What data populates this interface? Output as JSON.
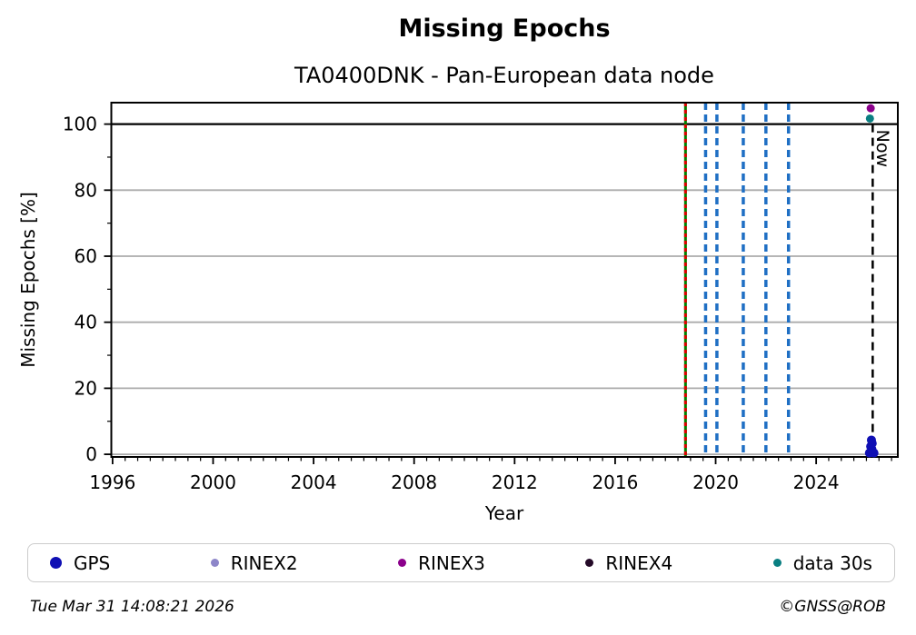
{
  "title": "Missing Epochs",
  "subtitle": "TA0400DNK - Pan-European data node",
  "footer": {
    "timestamp": "Tue Mar 31 14:08:21 2026",
    "credit": "©GNSS@ROB"
  },
  "chart_data": {
    "type": "scatter",
    "title": "Missing Epochs",
    "subtitle": "TA0400DNK - Pan-European data node",
    "xlabel": "Year",
    "ylabel": "Missing Epochs [%]",
    "xlim": [
      1995.95,
      2027.25
    ],
    "ylim": [
      -0.8,
      106.5
    ],
    "xticks": [
      1996,
      2000,
      2004,
      2008,
      2012,
      2016,
      2020,
      2024
    ],
    "yticks": [
      0,
      20,
      40,
      60,
      80,
      100
    ],
    "x_minor_step": 0.5,
    "y_minor_step": 10,
    "grid": true,
    "grid_color": "#ababab",
    "hline_y": 100,
    "legend_position": "bottom",
    "series": [
      {
        "name": "GPS",
        "color": "#0f0fb4",
        "marker_r": 5,
        "legend_marker_px": 13,
        "points": [
          [
            2026.12,
            0.4
          ],
          [
            2026.3,
            0.4
          ],
          [
            2026.2,
            0.6
          ],
          [
            2026.22,
            1.5
          ],
          [
            2026.17,
            2.4
          ],
          [
            2026.23,
            3.3
          ],
          [
            2026.2,
            4.3
          ]
        ]
      },
      {
        "name": "RINEX2",
        "color": "#8d86c9",
        "marker_r": 4.5,
        "legend_marker_px": 9,
        "points": []
      },
      {
        "name": "RINEX3",
        "color": "#8b008b",
        "marker_r": 4.5,
        "legend_marker_px": 9,
        "points": [
          [
            2026.17,
            104.8
          ]
        ]
      },
      {
        "name": "RINEX4",
        "color": "#250a28",
        "marker_r": 4.5,
        "legend_marker_px": 9,
        "points": []
      },
      {
        "name": "data 30s",
        "color": "#0a7f82",
        "marker_r": 4.5,
        "legend_marker_px": 9,
        "points": [
          [
            2026.14,
            101.7
          ]
        ]
      }
    ],
    "event_lines": [
      {
        "x": 2018.8,
        "style": "solid_red_dash",
        "color": "#008000",
        "overlay_color": "#e00000"
      },
      {
        "x": 2019.6,
        "style": "dashed",
        "color": "#1f6fc4"
      },
      {
        "x": 2020.05,
        "style": "dashed",
        "color": "#1f6fc4"
      },
      {
        "x": 2021.1,
        "style": "dashed",
        "color": "#1f6fc4"
      },
      {
        "x": 2022.0,
        "style": "dashed",
        "color": "#1f6fc4"
      },
      {
        "x": 2022.9,
        "style": "dashed",
        "color": "#1f6fc4"
      }
    ],
    "now_line": {
      "x": 2026.25,
      "label": "Now",
      "color": "#000000"
    }
  }
}
